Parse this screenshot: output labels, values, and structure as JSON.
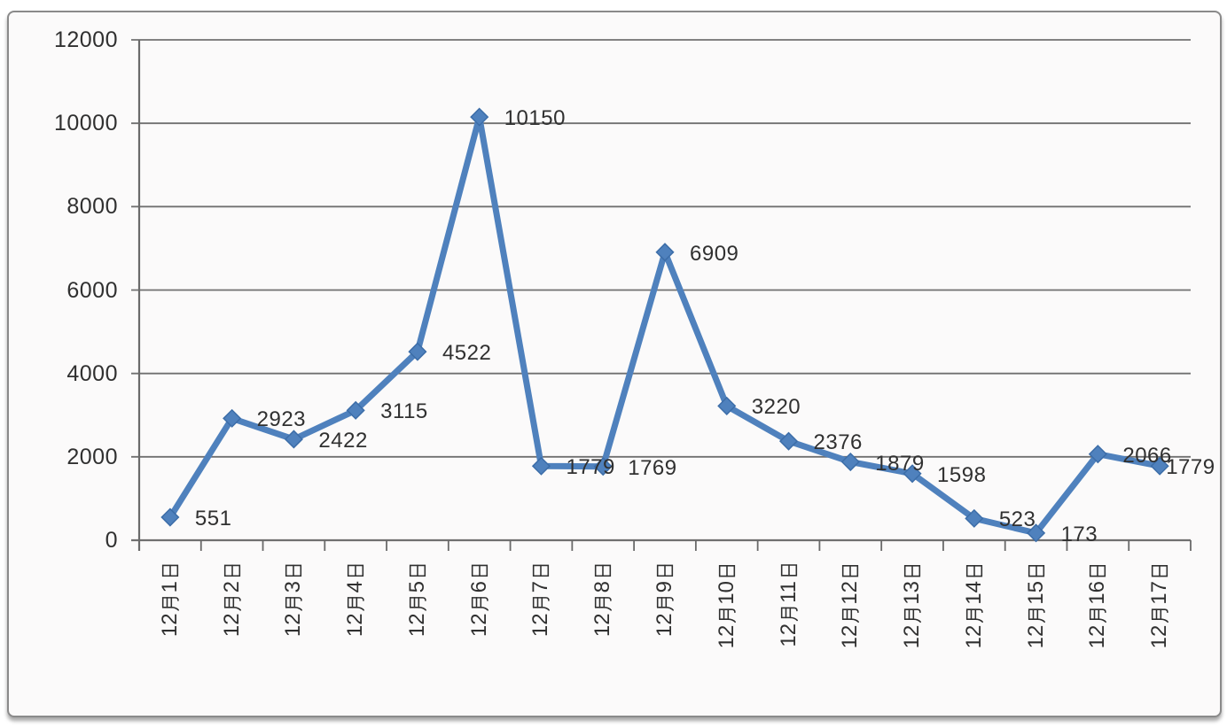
{
  "card": {
    "background": "#fbfafa",
    "border_color": "#8a8a8a"
  },
  "chart_data": {
    "type": "line",
    "title": "",
    "xlabel": "",
    "ylabel": "",
    "categories": [
      "12月1日",
      "12月2日",
      "12月3日",
      "12月4日",
      "12月5日",
      "12月6日",
      "12月7日",
      "12月8日",
      "12月9日",
      "12月10日",
      "12月11日",
      "12月12日",
      "12月13日",
      "12月14日",
      "12月15日",
      "12月16日",
      "12月17日"
    ],
    "values": [
      551,
      2923,
      2422,
      3115,
      4522,
      10150,
      1779,
      1769,
      6909,
      3220,
      2376,
      1879,
      1598,
      523,
      173,
      2066,
      1779
    ],
    "data_labels_visible": true,
    "y_ticks": [
      12000,
      10000,
      8000,
      6000,
      4000,
      2000,
      0
    ],
    "ylim": [
      0,
      12000
    ],
    "grid": "horizontal-only",
    "legend": "none",
    "marker": "diamond",
    "line_color": "#4f81bd",
    "marker_color": "#4f81bd",
    "marker_edge_color": "#3c6da8",
    "grid_color": "#707070",
    "axis_color": "#6a6a6a",
    "text_color": "#303030"
  }
}
